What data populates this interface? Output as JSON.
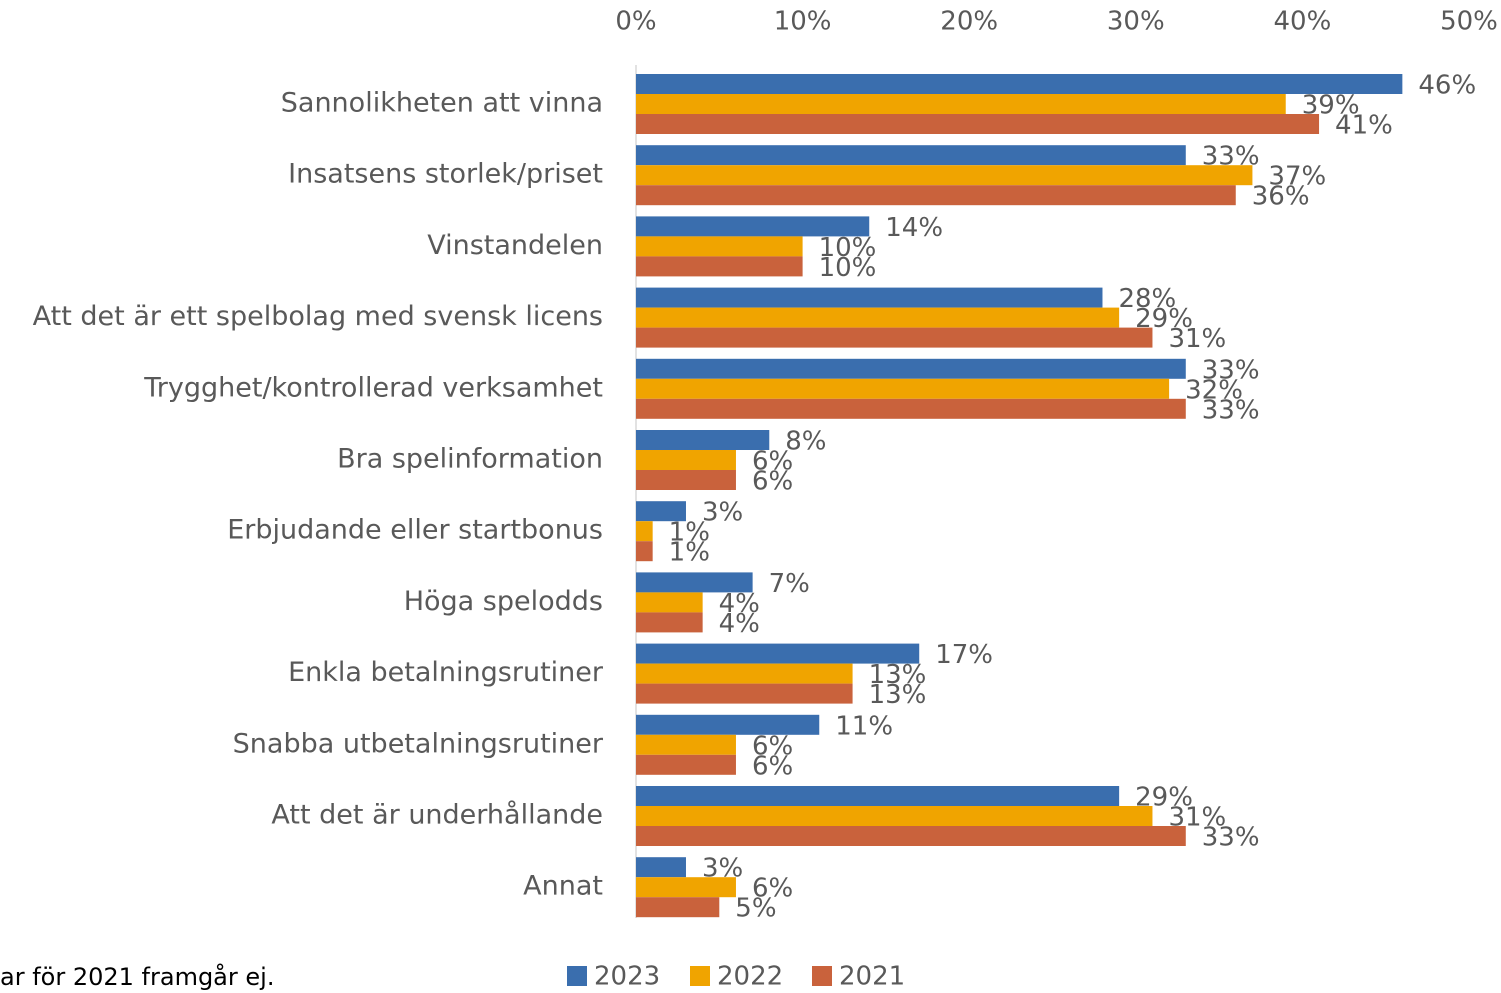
{
  "chart_data": {
    "type": "barh",
    "categories": [
      "Sannolikheten att vinna",
      "Insatsens storlek/priset",
      "Vinstandelen",
      "Att det är ett spelbolag med svensk licens",
      "Trygghet/kontrollerad verksamhet",
      "Bra spelinformation",
      "Erbjudande eller startbonus",
      "Höga spelodds",
      "Enkla betalningsrutiner",
      "Snabba utbetalningsrutiner",
      "Att det är underhållande",
      "Annat"
    ],
    "series": [
      {
        "name": "2023",
        "color": "#3a6eae",
        "values": [
          46,
          33,
          14,
          28,
          33,
          8,
          3,
          7,
          17,
          11,
          29,
          3
        ],
        "value_labels": [
          "46%",
          "33%",
          "14%",
          "28%",
          "33%",
          "8%",
          "3%",
          "7%",
          "17%",
          "11%",
          "29%",
          "3%"
        ]
      },
      {
        "name": "2022",
        "color": "#f0a400",
        "values": [
          39,
          37,
          10,
          29,
          32,
          6,
          1,
          4,
          13,
          6,
          31,
          6
        ],
        "value_labels": [
          "39%",
          "37%",
          "10%",
          "29%",
          "32%",
          "6%",
          "1%",
          "4%",
          "13%",
          "6%",
          "31%",
          "6%"
        ]
      },
      {
        "name": "2021",
        "color": "#c9623c",
        "values": [
          41,
          36,
          10,
          31,
          33,
          6,
          1,
          4,
          13,
          6,
          33,
          5
        ],
        "value_labels": [
          "41%",
          "36%",
          "10%",
          "31%",
          "33%",
          "6%",
          "1%",
          "4%",
          "13%",
          "6%",
          "33%",
          "5%"
        ]
      }
    ],
    "xlim": [
      0,
      50
    ],
    "xticks": [
      {
        "value": 0,
        "label": "0%"
      },
      {
        "value": 10,
        "label": "10%"
      },
      {
        "value": 20,
        "label": "20%"
      },
      {
        "value": 30,
        "label": "30%"
      },
      {
        "value": 40,
        "label": "40%"
      },
      {
        "value": 50,
        "label": "50%"
      }
    ],
    "legend": "bottom",
    "footnote": "ar för 2021 framgår ej."
  }
}
